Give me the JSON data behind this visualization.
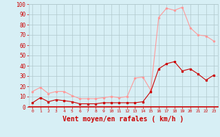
{
  "x": [
    0,
    1,
    2,
    3,
    4,
    5,
    6,
    7,
    8,
    9,
    10,
    11,
    12,
    13,
    14,
    15,
    16,
    17,
    18,
    19,
    20,
    21,
    22,
    23
  ],
  "wind_avg": [
    4,
    9,
    5,
    7,
    6,
    5,
    3,
    3,
    3,
    4,
    4,
    4,
    4,
    4,
    5,
    15,
    37,
    42,
    44,
    35,
    37,
    32,
    26,
    31
  ],
  "wind_gust": [
    15,
    19,
    13,
    15,
    15,
    11,
    8,
    8,
    8,
    9,
    10,
    9,
    10,
    28,
    29,
    16,
    87,
    96,
    94,
    97,
    77,
    70,
    69,
    64
  ],
  "bg_color": "#d7eff5",
  "grid_color": "#b0c8cc",
  "line_avg_color": "#cc0000",
  "line_gust_color": "#ff9999",
  "xlabel": "Vent moyen/en rafales ( km/h )",
  "xlabel_color": "#cc0000",
  "tick_color": "#cc0000",
  "axis_line_color": "#cc0000",
  "ylim": [
    0,
    100
  ],
  "xlim": [
    -0.5,
    23.5
  ],
  "yticks": [
    0,
    10,
    20,
    30,
    40,
    50,
    60,
    70,
    80,
    90,
    100
  ],
  "ytick_fontsize": 5.5,
  "xtick_fontsize": 4.5,
  "xlabel_fontsize": 7.0
}
